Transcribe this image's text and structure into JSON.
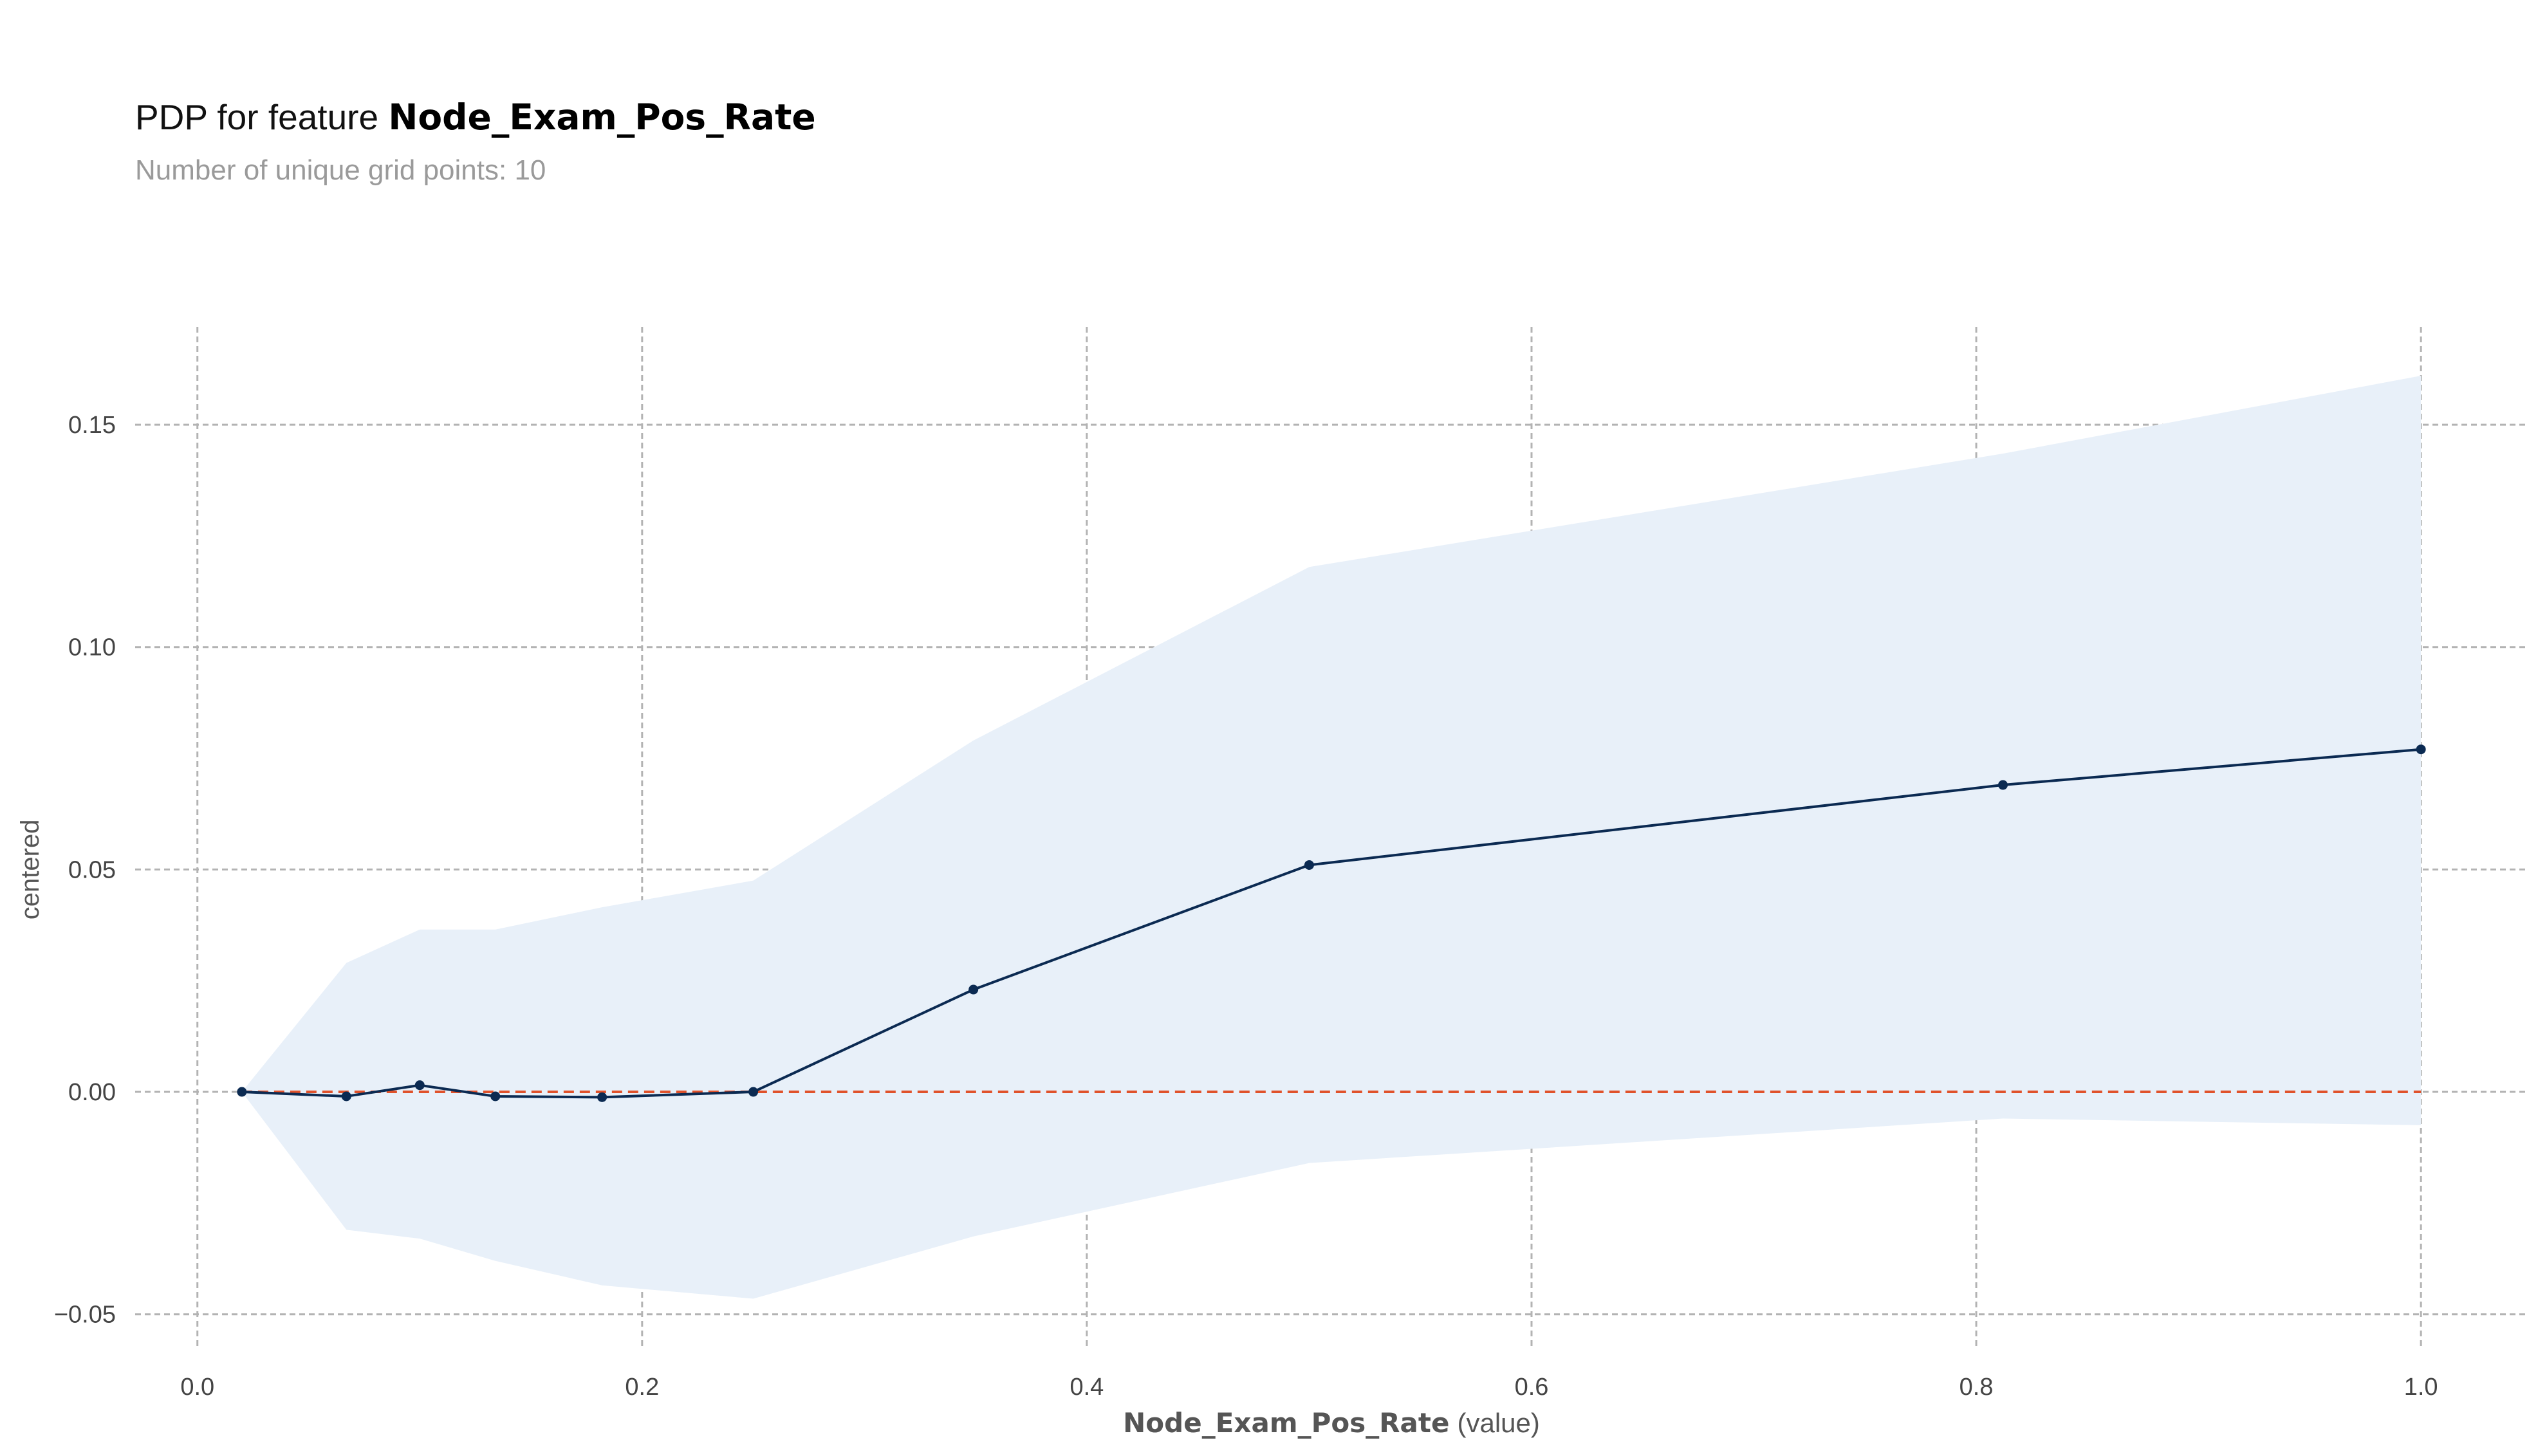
{
  "header": {
    "title_prefix": "PDP for feature",
    "feature_name": "Node_Exam_Pos_Rate",
    "subtitle": "Number of unique grid points: 10"
  },
  "colors": {
    "line": "#0b2a52",
    "band": "#e8f0f9",
    "baseline": "#e0522b",
    "grid": "#b3b3b3"
  },
  "chart_data": {
    "type": "line",
    "title": "PDP for feature Node_Exam_Pos_Rate",
    "subtitle": "Number of unique grid points: 10",
    "xlabel": "Node_Exam_Pos_Rate",
    "xlabel_suffix": "(value)",
    "ylabel": "centered",
    "xlim": [
      -0.028,
      1.048
    ],
    "ylim": [
      -0.058,
      0.172
    ],
    "xticks": [
      0.0,
      0.2,
      0.4,
      0.6,
      0.8,
      1.0
    ],
    "xtick_labels": [
      "0.0",
      "0.2",
      "0.4",
      "0.6",
      "0.8",
      "1.0"
    ],
    "yticks": [
      -0.05,
      0.0,
      0.05,
      0.1,
      0.15
    ],
    "ytick_labels": [
      "−0.05",
      "0.00",
      "0.05",
      "0.10",
      "0.15"
    ],
    "grid": true,
    "x": [
      0.02,
      0.067,
      0.1,
      0.134,
      0.182,
      0.25,
      0.349,
      0.5,
      0.812,
      1.0
    ],
    "series": [
      {
        "values": [
          0.0,
          -0.001,
          0.0015,
          -0.001,
          -0.0012,
          0.0,
          0.023,
          0.051,
          0.069,
          0.077
        ]
      }
    ],
    "band_upper": [
      0.0,
      0.029,
      0.0365,
      0.0365,
      0.0415,
      0.0475,
      0.079,
      0.118,
      0.1435,
      0.161
    ],
    "band_lower": [
      0.0,
      -0.031,
      -0.033,
      -0.038,
      -0.0435,
      -0.0465,
      -0.0325,
      -0.016,
      -0.006,
      -0.0075
    ],
    "baseline": 0.0
  }
}
